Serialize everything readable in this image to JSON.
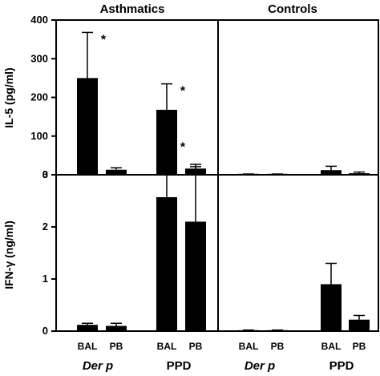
{
  "chart_data": {
    "type": "bar",
    "column_titles": [
      "Asthmatics",
      "Controls"
    ],
    "group_labels": [
      "Der p",
      "PPD"
    ],
    "bar_labels": [
      "BAL",
      "PB"
    ],
    "panels": [
      {
        "row": 0,
        "col": 0,
        "ylabel": "IL-5 (pg/ml)",
        "ylim": [
          0,
          400
        ],
        "yticks": [
          "0",
          "100",
          "200",
          "300",
          "400"
        ],
        "values": [
          250,
          13,
          168,
          16
        ],
        "errors": [
          118,
          5,
          67,
          5
        ],
        "significance": [
          "*",
          "",
          "*",
          ""
        ]
      },
      {
        "row": 0,
        "col": 1,
        "ylabel": "IL-5 (pg/ml)",
        "ylim": [
          0,
          400
        ],
        "values": [
          1,
          1,
          12,
          4
        ],
        "errors": [
          1,
          1,
          10,
          3
        ],
        "significance": [
          "",
          "",
          "",
          ""
        ]
      },
      {
        "row": 1,
        "col": 0,
        "ylabel": "IFN-γ (ng/ml)",
        "ylim": [
          0,
          3
        ],
        "yticks": [
          "0",
          "1",
          "2",
          "3"
        ],
        "values": [
          0.12,
          0.1,
          2.57,
          2.1
        ],
        "errors": [
          0.03,
          0.05,
          1.1,
          1.1
        ],
        "significance": [
          "",
          "",
          "*",
          ""
        ]
      },
      {
        "row": 1,
        "col": 1,
        "ylabel": "IFN-γ (ng/ml)",
        "ylim": [
          0,
          3
        ],
        "values": [
          0.01,
          0.01,
          0.9,
          0.22
        ],
        "errors": [
          0.01,
          0.01,
          0.4,
          0.08
        ],
        "significance": [
          "",
          "",
          "",
          ""
        ]
      }
    ],
    "bar_color": "#000000"
  }
}
